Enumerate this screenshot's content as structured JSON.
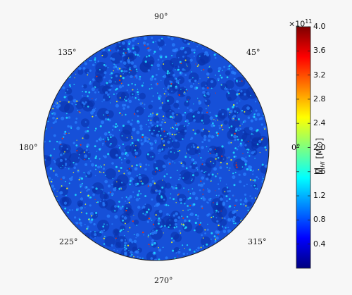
{
  "figure": {
    "angle_labels": [
      "0°",
      "45°",
      "90°",
      "135°",
      "180°",
      "225°",
      "270°",
      "315°"
    ],
    "colorbar": {
      "label_main": "M",
      "label_sub": "HI",
      "label_unit": " [M⊙]",
      "multiplier_base": "×10",
      "multiplier_exp": "11",
      "ticks": [
        "0.4",
        "0.8",
        "1.2",
        "1.6",
        "2.0",
        "2.4",
        "2.8",
        "3.2",
        "3.6",
        "4.0"
      ],
      "tick_values": [
        0.4,
        0.8,
        1.2,
        1.6,
        2.0,
        2.4,
        2.8,
        3.2,
        3.6,
        4.0
      ],
      "range": [
        0.0,
        4.0
      ],
      "colormap": "jet",
      "colors": [
        "#00007f",
        "#0000ff",
        "#007fff",
        "#00ffff",
        "#7fff7f",
        "#ffff00",
        "#ff7f00",
        "#ff0000",
        "#7f0000"
      ]
    },
    "field_colors": {
      "background": "#1650d8",
      "dark": "#0a2fa8",
      "mid": "#2a80ff",
      "cyan": "#20e0ff",
      "yellow": "#f0f020",
      "red": "#e83010"
    }
  }
}
